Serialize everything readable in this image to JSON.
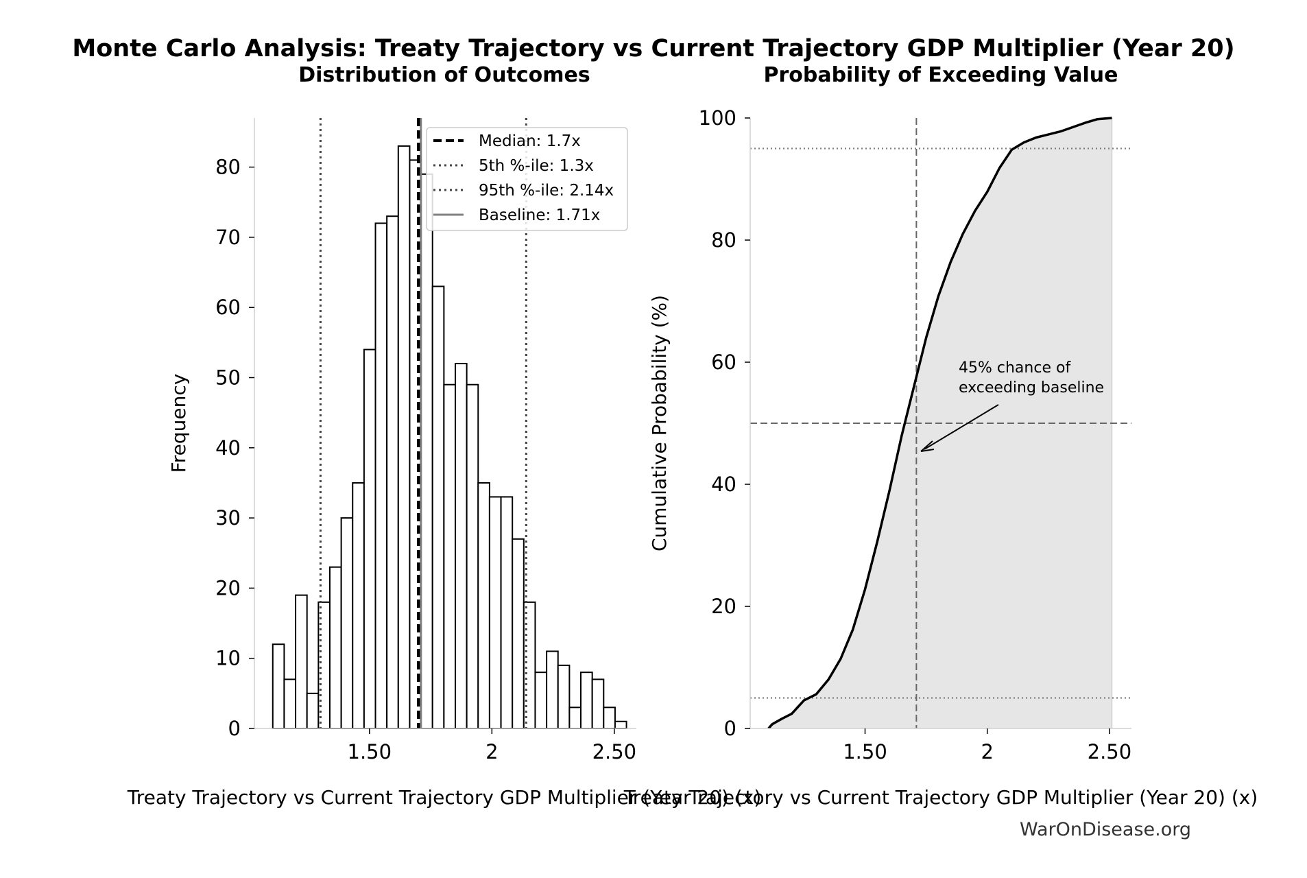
{
  "figure": {
    "suptitle": "Monte Carlo Analysis: Treaty Trajectory vs Current Trajectory GDP Multiplier (Year 20)",
    "watermark": "WarOnDisease.org"
  },
  "chart_data": [
    {
      "type": "bar",
      "subtype": "histogram",
      "title": "Distribution of Outcomes",
      "xlabel": "Treaty Trajectory vs Current Trajectory GDP Multiplier (Year 20) (x)",
      "ylabel": "Frequency",
      "xlim": [
        1.03,
        2.59
      ],
      "ylim": [
        0,
        87
      ],
      "x_ticks": [
        {
          "value": 1.5,
          "label": "1.50"
        },
        {
          "value": 2.0,
          "label": "2"
        },
        {
          "value": 2.5,
          "label": "2.50"
        }
      ],
      "y_ticks": [
        0,
        10,
        20,
        30,
        40,
        50,
        60,
        70,
        80
      ],
      "bin_start": 1.105,
      "bin_width": 0.0466,
      "counts": [
        12,
        7,
        19,
        5,
        18,
        23,
        30,
        35,
        54,
        72,
        73,
        83,
        81,
        79,
        63,
        49,
        52,
        49,
        35,
        33,
        33,
        27,
        18,
        8,
        11,
        9,
        3,
        8,
        7,
        3,
        1
      ],
      "vlines": [
        {
          "name": "Median: 1.7x",
          "x": 1.7,
          "style": "dashed",
          "color": "#000000"
        },
        {
          "name": "5th %-ile: 1.3x",
          "x": 1.3,
          "style": "dotted",
          "color": "#444444"
        },
        {
          "name": "95th %-ile: 2.14x",
          "x": 2.14,
          "style": "dotted",
          "color": "#444444"
        },
        {
          "name": "Baseline: 1.71x",
          "x": 1.71,
          "style": "solid",
          "color": "#808080"
        }
      ],
      "legend_position": "top-right",
      "grid": false
    },
    {
      "type": "line",
      "subtype": "cumulative",
      "title": "Probability of Exceeding Value",
      "xlabel": "Treaty Trajectory vs Current Trajectory GDP Multiplier (Year 20) (x)",
      "ylabel": "Cumulative Probability (%)",
      "xlim": [
        1.03,
        2.59
      ],
      "ylim": [
        0,
        100
      ],
      "x_ticks": [
        {
          "value": 1.5,
          "label": "1.50"
        },
        {
          "value": 2.0,
          "label": "2"
        },
        {
          "value": 2.5,
          "label": "2.50"
        }
      ],
      "y_ticks": [
        0,
        20,
        40,
        60,
        80,
        100
      ],
      "series": [
        {
          "x": [
            1.105,
            1.12,
            1.16,
            1.2,
            1.25,
            1.3,
            1.35,
            1.4,
            1.45,
            1.5,
            1.55,
            1.6,
            1.65,
            1.7,
            1.75,
            1.8,
            1.85,
            1.9,
            1.95,
            2.0,
            2.05,
            2.1,
            2.15,
            2.2,
            2.3,
            2.4,
            2.45,
            2.51
          ],
          "y": [
            0,
            0.7,
            1.6,
            2.4,
            4.6,
            5.6,
            8.0,
            11.4,
            16.2,
            22.8,
            30.6,
            39.0,
            48.0,
            56.0,
            64.0,
            70.8,
            76.4,
            81.0,
            84.8,
            87.9,
            91.8,
            94.8,
            96.0,
            96.8,
            97.8,
            99.2,
            99.8,
            100
          ]
        }
      ],
      "hlines": [
        {
          "y": 5,
          "style": "dotted",
          "color": "#808080"
        },
        {
          "y": 50,
          "style": "dashed",
          "color": "#666666"
        },
        {
          "y": 95,
          "style": "dotted",
          "color": "#808080"
        }
      ],
      "vline": {
        "x": 1.71,
        "style": "dashed",
        "color": "#666666"
      },
      "annotation": {
        "lines": [
          "45% chance of",
          "exceeding baseline"
        ],
        "x": 1.71,
        "y": 45
      },
      "grid": false
    }
  ]
}
